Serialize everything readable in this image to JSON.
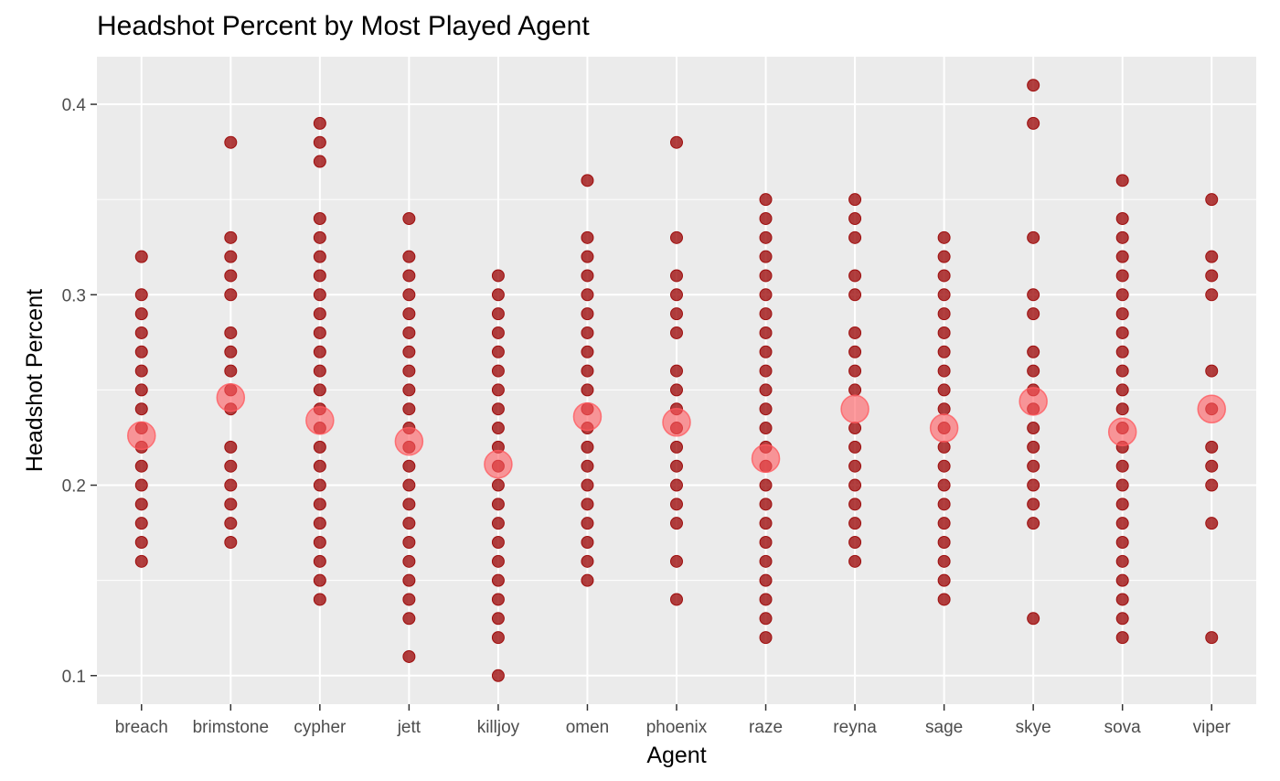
{
  "chart_data": {
    "type": "scatter",
    "title": "Headshot Percent by Most Played Agent",
    "xlabel": "Agent",
    "ylabel": "Headshot Percent",
    "categories": [
      "breach",
      "brimstone",
      "cypher",
      "jett",
      "killjoy",
      "omen",
      "phoenix",
      "raze",
      "reyna",
      "sage",
      "skye",
      "sova",
      "viper"
    ],
    "ylim": [
      0.085,
      0.425
    ],
    "yticks": [
      0.1,
      0.2,
      0.3,
      0.4
    ],
    "ytick_labels": [
      "0.1",
      "0.2",
      "0.3",
      "0.4"
    ],
    "grid": true,
    "legend": "none",
    "colors": {
      "panel": "#ebebeb",
      "grid": "#ffffff",
      "point": "#990000",
      "mean": "#ff5a5f"
    },
    "series": [
      {
        "kind": "observations",
        "values": {
          "breach": [
            0.32,
            0.3,
            0.29,
            0.28,
            0.27,
            0.26,
            0.25,
            0.24,
            0.23,
            0.22,
            0.21,
            0.2,
            0.19,
            0.18,
            0.17,
            0.16
          ],
          "brimstone": [
            0.38,
            0.33,
            0.32,
            0.31,
            0.3,
            0.28,
            0.27,
            0.26,
            0.25,
            0.24,
            0.22,
            0.21,
            0.2,
            0.19,
            0.18,
            0.17
          ],
          "cypher": [
            0.39,
            0.38,
            0.37,
            0.34,
            0.33,
            0.32,
            0.31,
            0.3,
            0.29,
            0.28,
            0.27,
            0.26,
            0.25,
            0.24,
            0.23,
            0.22,
            0.21,
            0.2,
            0.19,
            0.18,
            0.17,
            0.16,
            0.15,
            0.14
          ],
          "jett": [
            0.34,
            0.32,
            0.31,
            0.3,
            0.29,
            0.28,
            0.27,
            0.26,
            0.25,
            0.24,
            0.23,
            0.22,
            0.21,
            0.2,
            0.19,
            0.18,
            0.17,
            0.16,
            0.15,
            0.14,
            0.13,
            0.11
          ],
          "killjoy": [
            0.31,
            0.3,
            0.29,
            0.28,
            0.27,
            0.26,
            0.25,
            0.24,
            0.23,
            0.22,
            0.21,
            0.2,
            0.19,
            0.18,
            0.17,
            0.16,
            0.15,
            0.14,
            0.13,
            0.12,
            0.1
          ],
          "omen": [
            0.36,
            0.33,
            0.32,
            0.31,
            0.3,
            0.29,
            0.28,
            0.27,
            0.26,
            0.25,
            0.24,
            0.23,
            0.22,
            0.21,
            0.2,
            0.19,
            0.18,
            0.17,
            0.16,
            0.15
          ],
          "phoenix": [
            0.38,
            0.33,
            0.31,
            0.3,
            0.29,
            0.28,
            0.26,
            0.25,
            0.24,
            0.23,
            0.22,
            0.21,
            0.2,
            0.19,
            0.18,
            0.16,
            0.14
          ],
          "raze": [
            0.35,
            0.34,
            0.33,
            0.32,
            0.31,
            0.3,
            0.29,
            0.28,
            0.27,
            0.26,
            0.25,
            0.24,
            0.23,
            0.22,
            0.21,
            0.2,
            0.19,
            0.18,
            0.17,
            0.16,
            0.15,
            0.14,
            0.13,
            0.12
          ],
          "reyna": [
            0.35,
            0.34,
            0.33,
            0.31,
            0.3,
            0.28,
            0.27,
            0.26,
            0.25,
            0.23,
            0.22,
            0.21,
            0.2,
            0.19,
            0.18,
            0.17,
            0.16
          ],
          "sage": [
            0.33,
            0.32,
            0.31,
            0.3,
            0.29,
            0.28,
            0.27,
            0.26,
            0.25,
            0.24,
            0.23,
            0.22,
            0.21,
            0.2,
            0.19,
            0.18,
            0.17,
            0.16,
            0.15,
            0.14
          ],
          "skye": [
            0.41,
            0.39,
            0.33,
            0.3,
            0.29,
            0.27,
            0.26,
            0.25,
            0.24,
            0.23,
            0.22,
            0.21,
            0.2,
            0.19,
            0.18,
            0.13
          ],
          "sova": [
            0.36,
            0.34,
            0.33,
            0.32,
            0.31,
            0.3,
            0.29,
            0.28,
            0.27,
            0.26,
            0.25,
            0.24,
            0.23,
            0.22,
            0.21,
            0.2,
            0.19,
            0.18,
            0.17,
            0.16,
            0.15,
            0.14,
            0.13,
            0.12
          ],
          "viper": [
            0.35,
            0.32,
            0.31,
            0.3,
            0.26,
            0.24,
            0.22,
            0.21,
            0.2,
            0.18,
            0.12
          ]
        }
      },
      {
        "kind": "mean",
        "values": {
          "breach": 0.226,
          "brimstone": 0.246,
          "cypher": 0.234,
          "jett": 0.223,
          "killjoy": 0.211,
          "omen": 0.236,
          "phoenix": 0.233,
          "raze": 0.214,
          "reyna": 0.24,
          "sage": 0.23,
          "skye": 0.244,
          "sova": 0.228,
          "viper": 0.24
        }
      }
    ]
  }
}
